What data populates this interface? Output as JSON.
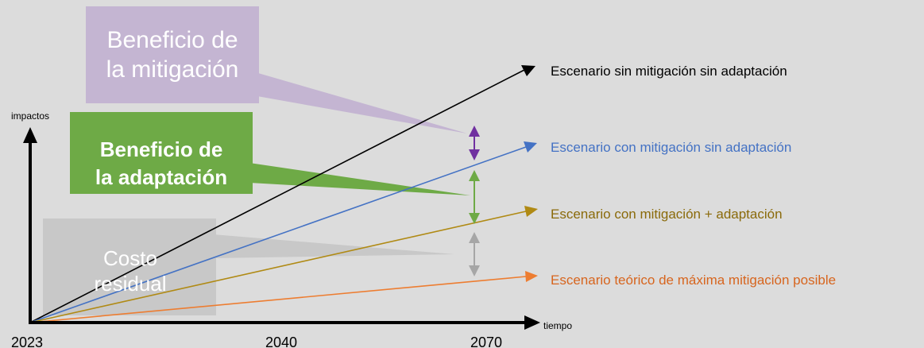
{
  "axes": {
    "y_label": "impactos",
    "x_label": "tiempo",
    "ticks": [
      "2023",
      "2040",
      "2070"
    ]
  },
  "boxes": {
    "mitigation": {
      "line1": "Beneficio de",
      "line2": "la mitigación",
      "color": "#c4b5d2"
    },
    "adaptation": {
      "line1": "Beneficio de",
      "line2": "la adaptación",
      "color": "#6eaa46"
    },
    "residual": {
      "line1": "Costo",
      "line2": "residual",
      "color": "#c8c8c8"
    }
  },
  "scenarios": [
    {
      "label": "Escenario sin mitigación sin adaptación",
      "color": "#000000"
    },
    {
      "label": "Escenario con mitigación sin adaptación",
      "color": "#4472c4"
    },
    {
      "label": "Escenario con mitigación + adaptación",
      "color": "#b08a14"
    },
    {
      "label": "Escenario teórico de máxima mitigación posible",
      "color": "#ed7d31"
    }
  ],
  "gap_arrows": {
    "mitigation_color": "#7030a0",
    "adaptation_color": "#6eaa46",
    "residual_color": "#a6a6a6"
  }
}
